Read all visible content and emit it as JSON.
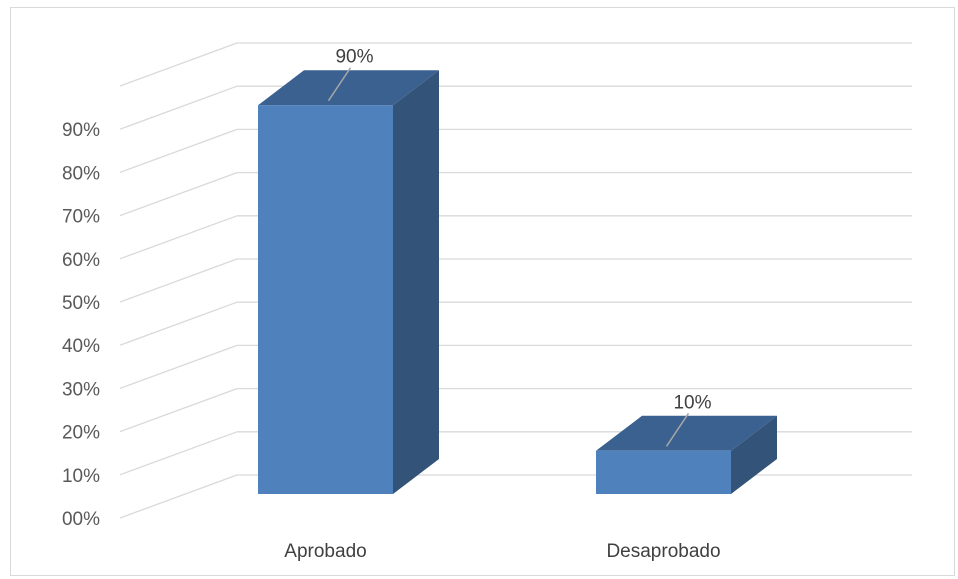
{
  "chart_data": {
    "type": "bar",
    "style": "3d-column",
    "categories": [
      "Aprobado",
      "Desaprobado"
    ],
    "values": [
      90,
      10
    ],
    "data_labels": [
      "90%",
      "10%"
    ],
    "y_ticks": [
      "00%",
      "10%",
      "20%",
      "30%",
      "40%",
      "50%",
      "60%",
      "70%",
      "80%",
      "90%"
    ],
    "ylim": [
      0,
      100
    ],
    "grid": true,
    "legend": "none",
    "colors": {
      "front": "#4f81bd",
      "top": "#3a6190",
      "side": "#335379",
      "grid": "#d9d9d9",
      "leader": "#a6a6a6"
    }
  }
}
